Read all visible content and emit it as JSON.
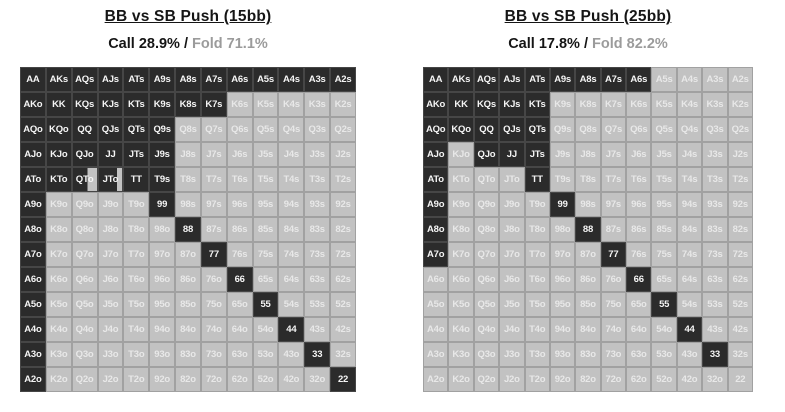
{
  "colors": {
    "call_bg": "#2b2b2b",
    "call_border": "#464646",
    "call_text": "#f5f5f5",
    "fold_bg": "#c2c2c2",
    "fold_border": "#a1a1a1",
    "fold_text": "#e8e8e8",
    "title_text": "#151515",
    "fold_label_text": "#9b9b9b"
  },
  "hands": [
    [
      "AA",
      "AKs",
      "AQs",
      "AJs",
      "ATs",
      "A9s",
      "A8s",
      "A7s",
      "A6s",
      "A5s",
      "A4s",
      "A3s",
      "A2s"
    ],
    [
      "AKo",
      "KK",
      "KQs",
      "KJs",
      "KTs",
      "K9s",
      "K8s",
      "K7s",
      "K6s",
      "K5s",
      "K4s",
      "K3s",
      "K2s"
    ],
    [
      "AQo",
      "KQo",
      "QQ",
      "QJs",
      "QTs",
      "Q9s",
      "Q8s",
      "Q7s",
      "Q6s",
      "Q5s",
      "Q4s",
      "Q3s",
      "Q2s"
    ],
    [
      "AJo",
      "KJo",
      "QJo",
      "JJ",
      "JTs",
      "J9s",
      "J8s",
      "J7s",
      "J6s",
      "J5s",
      "J4s",
      "J3s",
      "J2s"
    ],
    [
      "ATo",
      "KTo",
      "QTo",
      "JTo",
      "TT",
      "T9s",
      "T8s",
      "T7s",
      "T6s",
      "T5s",
      "T4s",
      "T3s",
      "T2s"
    ],
    [
      "A9o",
      "K9o",
      "Q9o",
      "J9o",
      "T9o",
      "99",
      "98s",
      "97s",
      "96s",
      "95s",
      "94s",
      "93s",
      "92s"
    ],
    [
      "A8o",
      "K8o",
      "Q8o",
      "J8o",
      "T8o",
      "98o",
      "88",
      "87s",
      "86s",
      "85s",
      "84s",
      "83s",
      "82s"
    ],
    [
      "A7o",
      "K7o",
      "Q7o",
      "J7o",
      "T7o",
      "97o",
      "87o",
      "77",
      "76s",
      "75s",
      "74s",
      "73s",
      "72s"
    ],
    [
      "A6o",
      "K6o",
      "Q6o",
      "J6o",
      "T6o",
      "96o",
      "86o",
      "76o",
      "66",
      "65s",
      "64s",
      "63s",
      "62s"
    ],
    [
      "A5o",
      "K5o",
      "Q5o",
      "J5o",
      "T5o",
      "95o",
      "85o",
      "75o",
      "65o",
      "55",
      "54s",
      "53s",
      "52s"
    ],
    [
      "A4o",
      "K4o",
      "Q4o",
      "J4o",
      "T4o",
      "94o",
      "84o",
      "74o",
      "64o",
      "54o",
      "44",
      "43s",
      "42s"
    ],
    [
      "A3o",
      "K3o",
      "Q3o",
      "J3o",
      "T3o",
      "93o",
      "83o",
      "73o",
      "63o",
      "53o",
      "43o",
      "33",
      "32s"
    ],
    [
      "A2o",
      "K2o",
      "Q2o",
      "J2o",
      "T2o",
      "92o",
      "82o",
      "72o",
      "62o",
      "52o",
      "42o",
      "32o",
      "22"
    ]
  ],
  "chart_data": [
    {
      "type": "heatmap",
      "title": "BB vs SB Push (15bb)",
      "call_label": "Call 28.9%",
      "separator": " / ",
      "fold_label": "Fold 71.1%",
      "call_pct": 28.9,
      "fold_pct": 71.1,
      "legend": {
        "dark_cells": "Call",
        "light_cells": "Fold"
      },
      "states": [
        "CCCCCCCCCCCCC",
        "CCCCCCCCFFFFF",
        "CCCCCCFFFFFFF",
        "CCCCCCFFFFFFF",
        "CCMMCCFFFFFFF",
        "CFFFFCFFFFFFF",
        "CFFFFFCFFFFFF",
        "CFFFFFFCFFFFF",
        "CFFFFFFFCFFFF",
        "CFFFFFFFFCFFF",
        "CFFFFFFFFFCFF",
        "CFFFFFFFFFFCF",
        "CFFFFFFFFFFFC"
      ],
      "mixed_call_fraction": {
        "QTo": 0.6,
        "JTo": 0.78
      }
    },
    {
      "type": "heatmap",
      "title": "BB vs SB Push (25bb)",
      "call_label": "Call 17.8%",
      "separator": " / ",
      "fold_label": "Fold 82.2%",
      "call_pct": 17.8,
      "fold_pct": 82.2,
      "legend": {
        "dark_cells": "Call",
        "light_cells": "Fold"
      },
      "states": [
        "CCCCCCCCCFFFF",
        "CCCCCFFFFFFFF",
        "CCCCCFFFFFFFF",
        "CFCCCFFFFFFFF",
        "CFFFCFFFFFFFF",
        "CFFFFCFFFFFFF",
        "CFFFFFCFFFFFF",
        "CFFFFFFCFFFFF",
        "FFFFFFFFCFFFF",
        "FFFFFFFFFCFFF",
        "FFFFFFFFFFCFF",
        "FFFFFFFFFFFCF",
        "FFFFFFFFFFFFF"
      ],
      "mixed_call_fraction": {}
    }
  ]
}
